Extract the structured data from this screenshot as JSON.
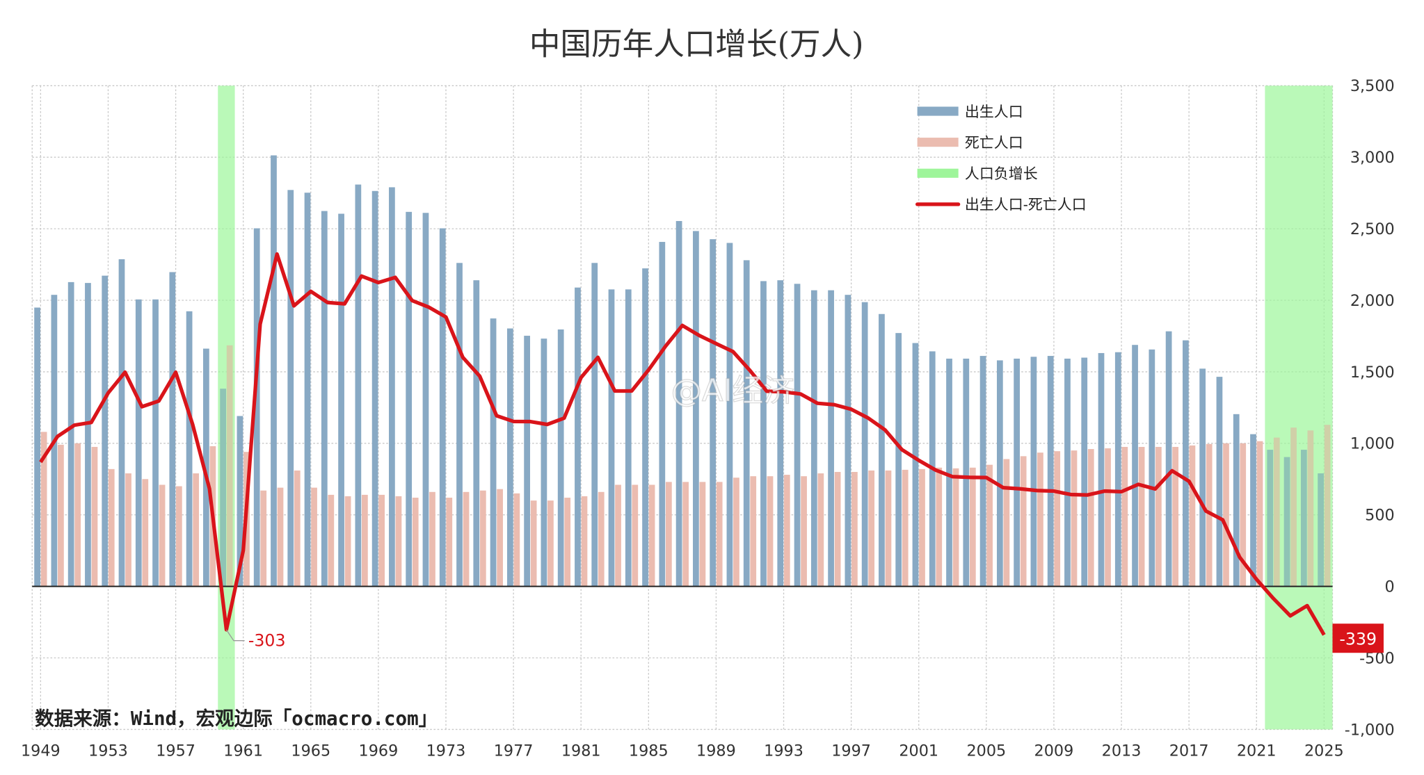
{
  "chart_data": {
    "type": "bar+line",
    "title": "中国历年人口增长(万人)",
    "x": [
      1949,
      1950,
      1951,
      1952,
      1953,
      1954,
      1955,
      1956,
      1957,
      1958,
      1959,
      1960,
      1961,
      1962,
      1963,
      1964,
      1965,
      1966,
      1967,
      1968,
      1969,
      1970,
      1971,
      1972,
      1973,
      1974,
      1975,
      1976,
      1977,
      1978,
      1979,
      1980,
      1981,
      1982,
      1983,
      1984,
      1985,
      1986,
      1987,
      1988,
      1989,
      1990,
      1991,
      1992,
      1993,
      1994,
      1995,
      1996,
      1997,
      1998,
      1999,
      2000,
      2001,
      2002,
      2003,
      2004,
      2005,
      2006,
      2007,
      2008,
      2009,
      2010,
      2011,
      2012,
      2013,
      2014,
      2015,
      2016,
      2017,
      2018,
      2019,
      2020,
      2021,
      2022,
      2023,
      2024,
      2025
    ],
    "x_tick_labels": [
      "1949",
      "1953",
      "1957",
      "1961",
      "1965",
      "1969",
      "1973",
      "1977",
      "1981",
      "1985",
      "1989",
      "1993",
      "1997",
      "2001",
      "2005",
      "2009",
      "2013",
      "2017",
      "2021",
      "2025"
    ],
    "y_tick_labels": [
      "3,500",
      "3,000",
      "2,500",
      "2,000",
      "1,500",
      "1,000",
      "500",
      "0",
      "-500",
      "-1,000"
    ],
    "ylim": [
      -1000,
      3500
    ],
    "y_axis_side": "right",
    "grid": true,
    "legend_position": "top-right",
    "series": [
      {
        "name": "出生人口",
        "type": "bar",
        "color": "#88a9c4",
        "values": [
          1949,
          2038,
          2127,
          2121,
          2172,
          2287,
          2006,
          2006,
          2197,
          1923,
          1662,
          1382,
          1191,
          2503,
          3013,
          2771,
          2752,
          2624,
          2605,
          2809,
          2764,
          2790,
          2618,
          2611,
          2503,
          2261,
          2140,
          1873,
          1803,
          1752,
          1732,
          1796,
          2089,
          2261,
          2076,
          2076,
          2223,
          2408,
          2554,
          2484,
          2427,
          2401,
          2280,
          2134,
          2140,
          2115,
          2070,
          2070,
          2038,
          1987,
          1904,
          1771,
          1701,
          1643,
          1592,
          1592,
          1611,
          1580,
          1592,
          1605,
          1611,
          1592,
          1599,
          1631,
          1637,
          1688,
          1656,
          1783,
          1720,
          1522,
          1465,
          1204,
          1064,
          955,
          904,
          955,
          790
        ]
      },
      {
        "name": "死亡人口",
        "type": "bar",
        "color": "#ebbcb0",
        "values": [
          1080,
          990,
          1000,
          975,
          820,
          790,
          750,
          710,
          700,
          790,
          980,
          1685,
          940,
          670,
          690,
          810,
          690,
          640,
          630,
          640,
          640,
          630,
          620,
          660,
          620,
          660,
          670,
          680,
          650,
          600,
          600,
          620,
          630,
          660,
          710,
          710,
          710,
          730,
          730,
          730,
          730,
          760,
          770,
          770,
          780,
          770,
          790,
          800,
          800,
          810,
          810,
          815,
          820,
          830,
          825,
          830,
          850,
          890,
          910,
          935,
          945,
          950,
          960,
          965,
          975,
          975,
          975,
          975,
          985,
          995,
          1000,
          1000,
          1015,
          1040,
          1110,
          1090,
          1129
        ]
      },
      {
        "name": "人口负增长",
        "type": "shaded",
        "color": "#9ef59a",
        "ranges": [
          [
            1960,
            1960
          ],
          [
            2022,
            2025
          ]
        ]
      },
      {
        "name": "出生人口-死亡人口",
        "type": "line",
        "color": "#d9141a",
        "derived": "出生人口 - 死亡人口"
      }
    ],
    "annotations": [
      {
        "x": 1960,
        "label": "-303"
      },
      {
        "x": 2025,
        "label": "-339"
      }
    ]
  },
  "source_note": "数据来源：Wind，宏观边际「ocmacro.com」",
  "watermark": "@AI经济"
}
